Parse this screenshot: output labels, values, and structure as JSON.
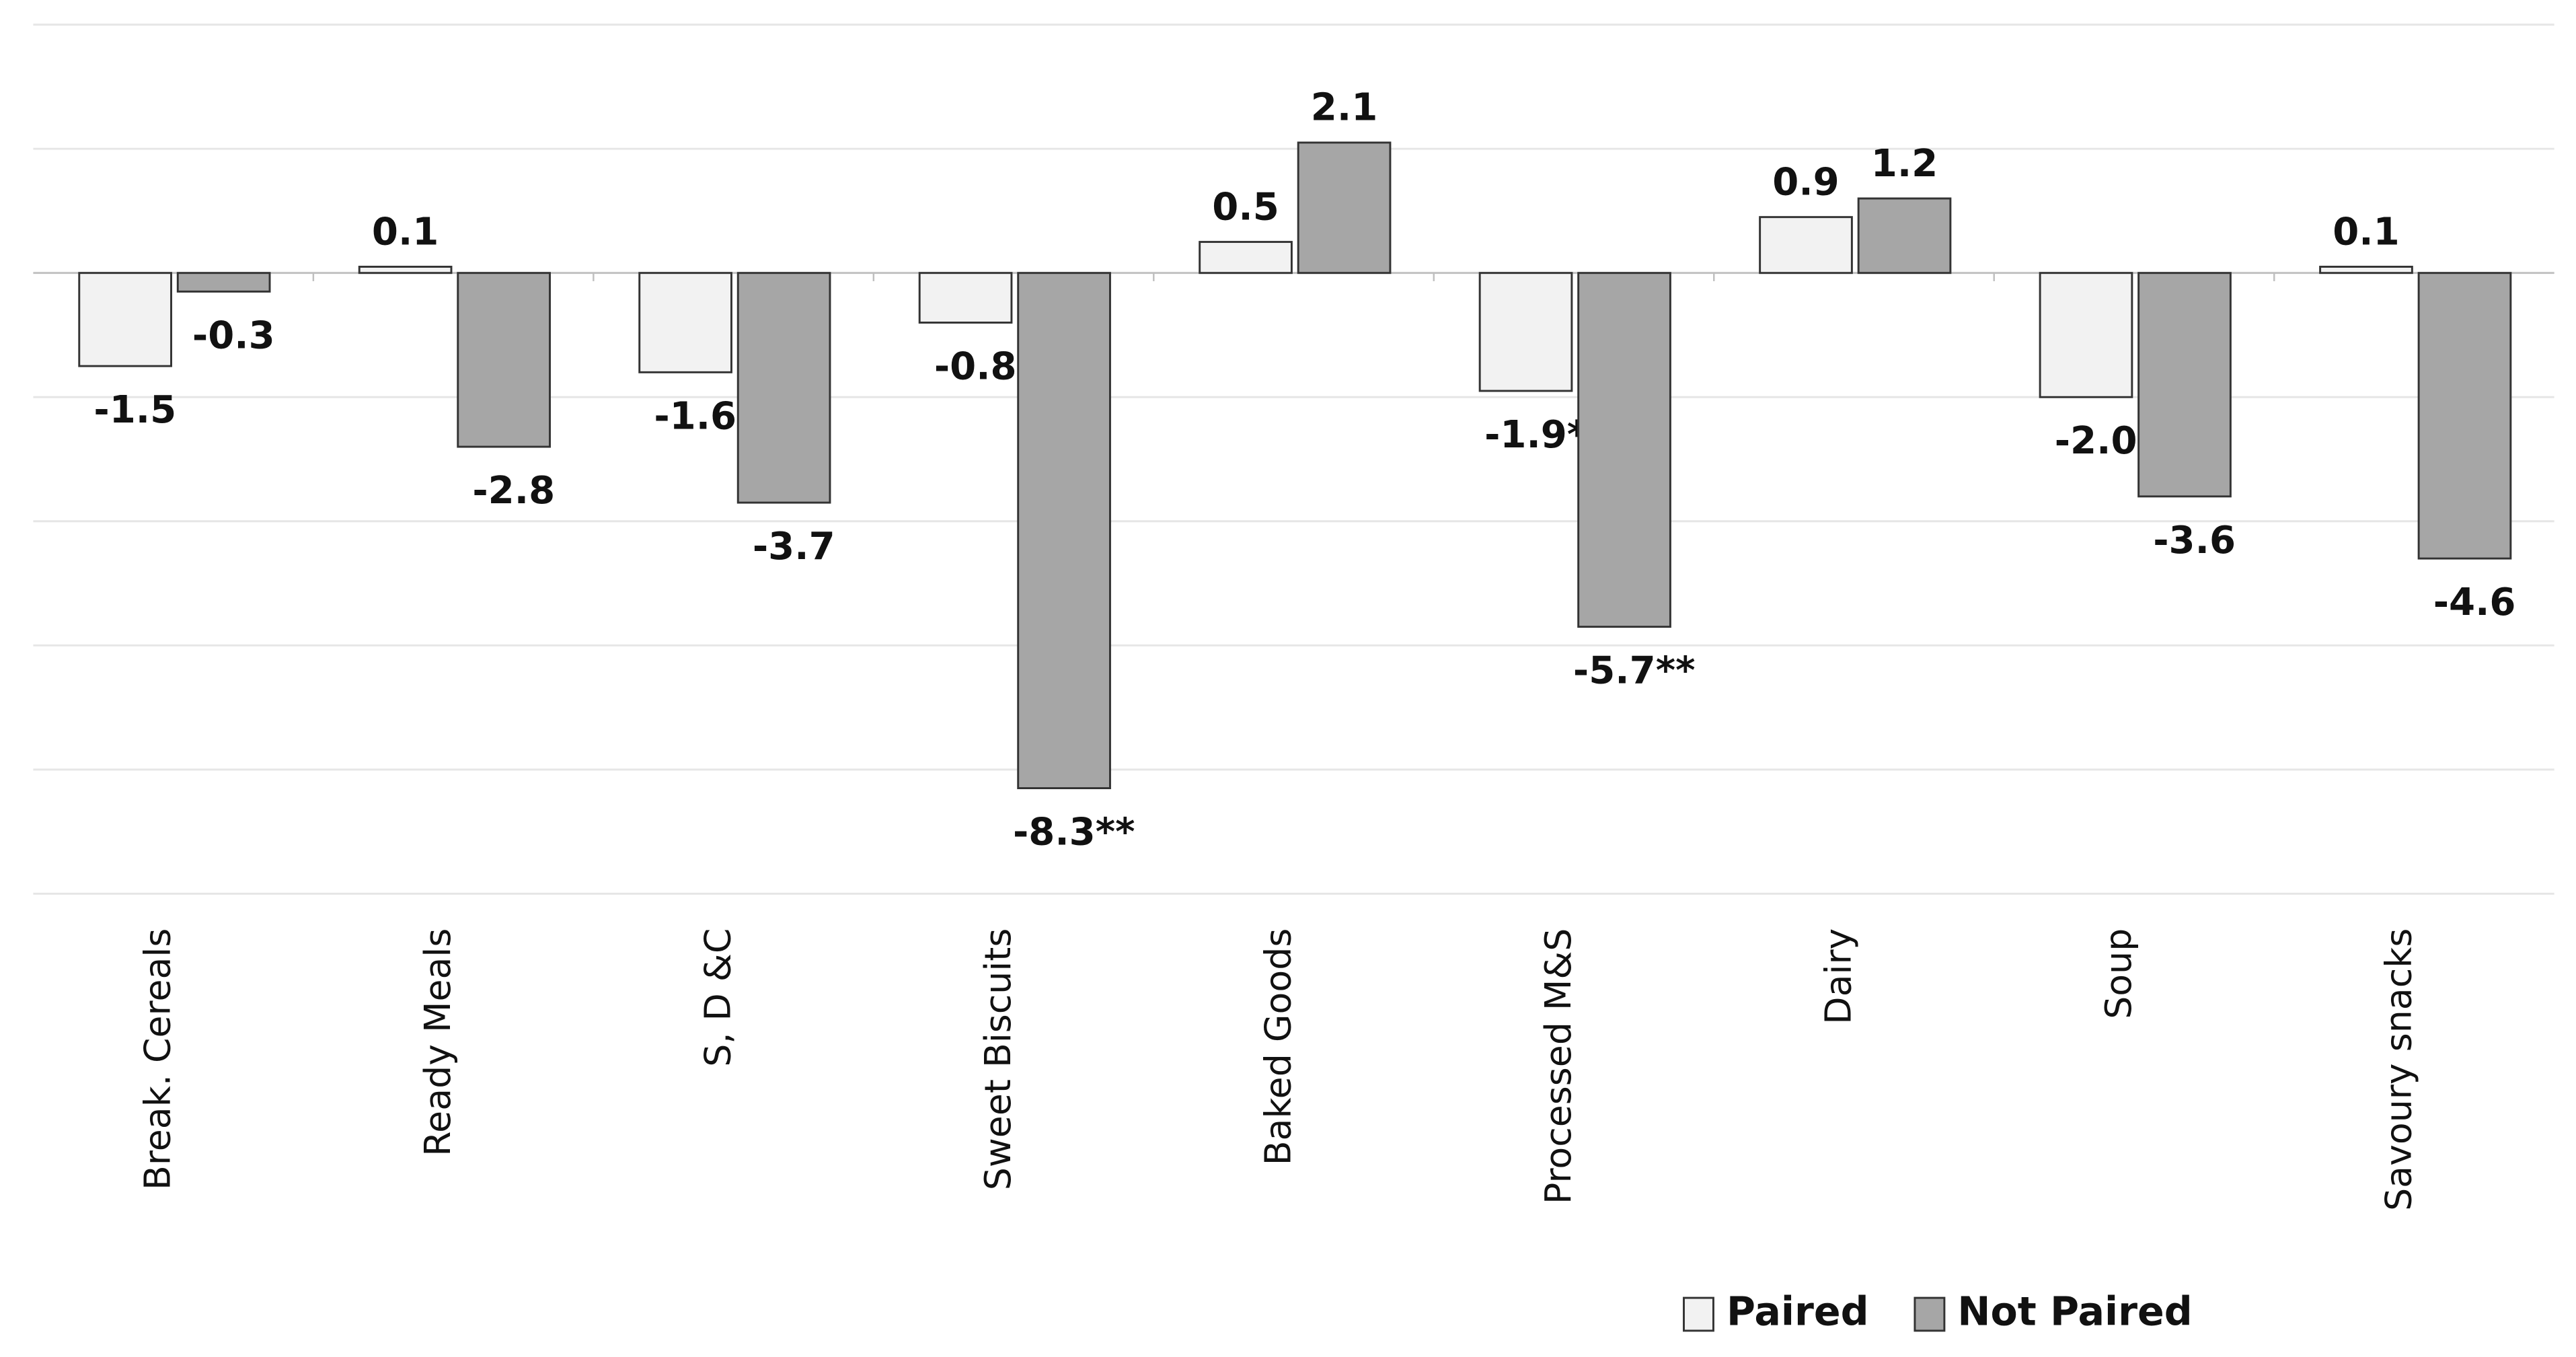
{
  "chart_data": {
    "type": "bar",
    "categories": [
      "Break. Cereals",
      "Ready Meals",
      "S, D &C",
      "Sweet Biscuits",
      "Baked Goods",
      "Processed M&S",
      "Dairy",
      "Soup",
      "Savoury snacks"
    ],
    "series": [
      {
        "name": "Paired",
        "color": "#f2f2f2",
        "values": [
          -1.5,
          0.1,
          -1.6,
          -0.8,
          0.5,
          -1.9,
          0.9,
          -2.0,
          0.1
        ],
        "value_labels": [
          "-1.5",
          "0.1",
          "-1.6",
          "-0.8",
          "0.5",
          "-1.9*",
          "0.9",
          "-2.0",
          "0.1"
        ]
      },
      {
        "name": "Not Paired",
        "color": "#a6a6a6",
        "values": [
          -0.3,
          -2.8,
          -3.7,
          -8.3,
          2.1,
          -5.7,
          1.2,
          -3.6,
          -4.6
        ],
        "value_labels": [
          "-0.3",
          "-2.8",
          "-3.7",
          "-8.3**",
          "2.1",
          "-5.7**",
          "1.2",
          "-3.6",
          "-4.6"
        ]
      }
    ],
    "ylim": [
      -10,
      4
    ],
    "yticks": [
      -10,
      -8,
      -6,
      -4,
      -2,
      0,
      2,
      4
    ],
    "grid": true,
    "legend": "bottom-right"
  }
}
